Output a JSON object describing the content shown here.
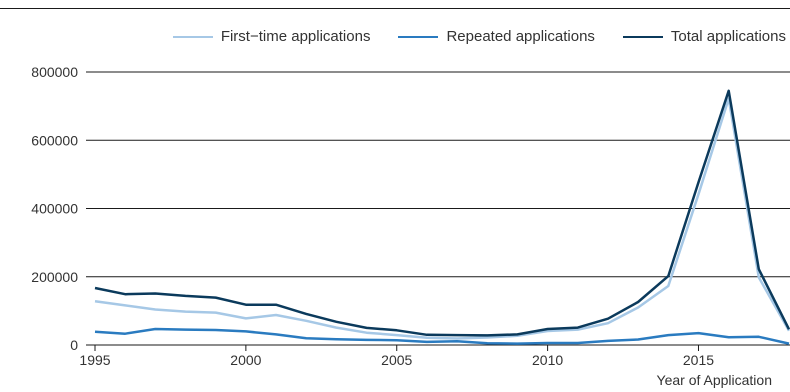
{
  "chart_data": {
    "type": "line",
    "title": "",
    "xlabel": "Year of Application",
    "ylabel": "",
    "xlim": [
      1995,
      2018
    ],
    "ylim": [
      0,
      800000
    ],
    "x_ticks": [
      1995,
      2000,
      2005,
      2010,
      2015
    ],
    "y_ticks": [
      0,
      200000,
      400000,
      600000,
      800000
    ],
    "y_tick_labels": [
      "0",
      "200000",
      "400000",
      "600000",
      "800000"
    ],
    "x_tick_labels": [
      "1995",
      "2000",
      "2005",
      "2010",
      "2015"
    ],
    "grid": "horizontal",
    "legend_position": "top-right",
    "x": [
      1995,
      1996,
      1997,
      1998,
      1999,
      2000,
      2001,
      2002,
      2003,
      2004,
      2005,
      2006,
      2007,
      2008,
      2009,
      2010,
      2011,
      2012,
      2013,
      2014,
      2015,
      2016,
      2017,
      2018
    ],
    "series": [
      {
        "name": "First−time applications",
        "color": "#a6c8e6",
        "values": [
          128000,
          116000,
          104000,
          98000,
          95000,
          78000,
          88000,
          71000,
          51000,
          36000,
          29000,
          21000,
          19000,
          22000,
          27000,
          41000,
          45000,
          64000,
          110000,
          173000,
          442000,
          722000,
          198000,
          42000
        ]
      },
      {
        "name": "Repeated applications",
        "color": "#2a7bc0",
        "values": [
          39000,
          33000,
          47000,
          45000,
          44000,
          40000,
          31000,
          20000,
          17000,
          15000,
          14000,
          9000,
          11000,
          5000,
          4000,
          6000,
          6000,
          12000,
          16000,
          29000,
          35000,
          23000,
          24000,
          4000
        ]
      },
      {
        "name": "Total applications",
        "color": "#0b3a5c",
        "values": [
          167000,
          149000,
          151000,
          144000,
          139000,
          118000,
          118000,
          91000,
          68000,
          50000,
          43000,
          30000,
          29000,
          28000,
          31000,
          47000,
          51000,
          77000,
          126000,
          202000,
          477000,
          745000,
          222000,
          46000
        ]
      }
    ]
  }
}
